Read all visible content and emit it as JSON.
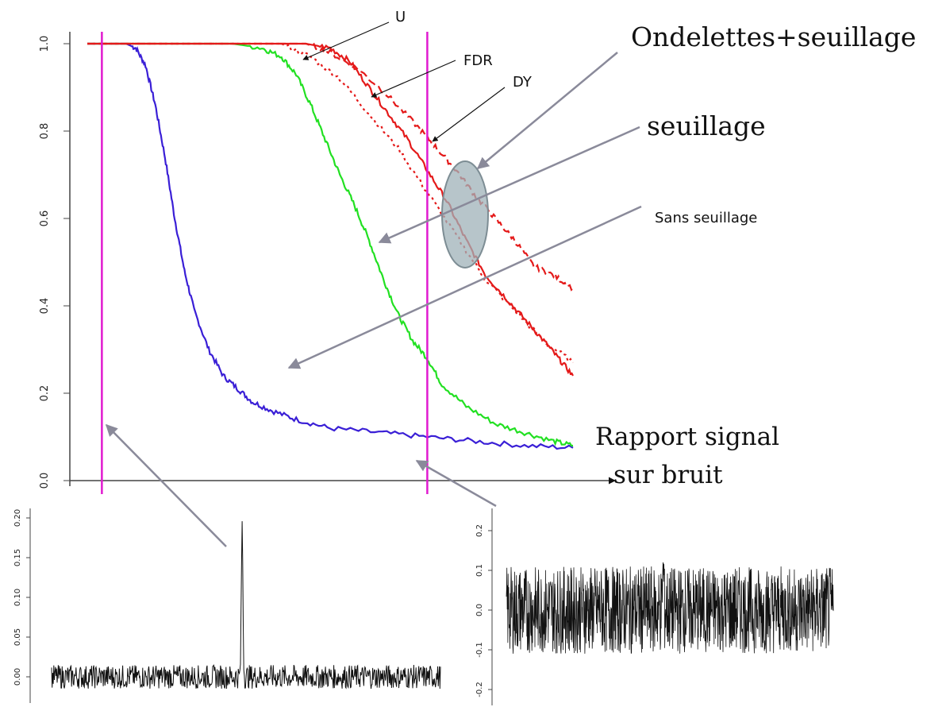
{
  "chart_data": [
    {
      "type": "line",
      "yticks": [
        "0.0",
        "0.2",
        "0.4",
        "0.6",
        "0.8",
        "1.0"
      ],
      "ylim": [
        0,
        1.0
      ],
      "xlim": [
        0,
        1
      ],
      "grid": false,
      "series": [
        {
          "name": "Sans seuillage",
          "color": "#3a1fd6",
          "style": "solid",
          "x": [
            0.0,
            0.08,
            0.1,
            0.12,
            0.14,
            0.16,
            0.18,
            0.2,
            0.22,
            0.25,
            0.28,
            0.31,
            0.34,
            0.38,
            0.43,
            0.5,
            0.6,
            0.7,
            0.8,
            0.9,
            1.0
          ],
          "y": [
            1.0,
            1.0,
            0.99,
            0.95,
            0.86,
            0.74,
            0.6,
            0.48,
            0.39,
            0.3,
            0.24,
            0.21,
            0.18,
            0.16,
            0.14,
            0.12,
            0.11,
            0.1,
            0.09,
            0.08,
            0.075
          ]
        },
        {
          "name": "seuillage",
          "color": "#22e022",
          "style": "solid",
          "x": [
            0.0,
            0.3,
            0.36,
            0.4,
            0.43,
            0.46,
            0.49,
            0.52,
            0.55,
            0.58,
            0.61,
            0.64,
            0.67,
            0.7,
            0.73,
            0.78,
            0.84,
            0.9,
            0.96,
            1.0
          ],
          "y": [
            1.0,
            1.0,
            0.99,
            0.97,
            0.93,
            0.86,
            0.78,
            0.7,
            0.63,
            0.55,
            0.46,
            0.38,
            0.32,
            0.28,
            0.22,
            0.17,
            0.13,
            0.11,
            0.09,
            0.08
          ]
        },
        {
          "name": "FDR",
          "color": "#e41a1a",
          "style": "solid",
          "x": [
            0.0,
            0.45,
            0.5,
            0.54,
            0.58,
            0.62,
            0.66,
            0.7,
            0.74,
            0.78,
            0.82,
            0.86,
            0.9,
            0.94,
            0.97,
            1.0
          ],
          "y": [
            1.0,
            1.0,
            0.99,
            0.96,
            0.9,
            0.84,
            0.78,
            0.71,
            0.64,
            0.55,
            0.47,
            0.42,
            0.37,
            0.32,
            0.28,
            0.24
          ]
        },
        {
          "name": "U",
          "color": "#e41a1a",
          "style": "dotted",
          "x": [
            0.0,
            0.4,
            0.46,
            0.52,
            0.58,
            0.64,
            0.7,
            0.76,
            0.82,
            0.88,
            0.94,
            1.0
          ],
          "y": [
            1.0,
            1.0,
            0.97,
            0.92,
            0.84,
            0.76,
            0.66,
            0.56,
            0.46,
            0.39,
            0.32,
            0.27
          ]
        },
        {
          "name": "DY",
          "color": "#e41a1a",
          "style": "dashed",
          "x": [
            0.0,
            0.45,
            0.5,
            0.56,
            0.62,
            0.68,
            0.72,
            0.76,
            0.8,
            0.84,
            0.88,
            0.92,
            0.96,
            1.0
          ],
          "y": [
            1.0,
            1.0,
            0.98,
            0.94,
            0.88,
            0.81,
            0.76,
            0.71,
            0.65,
            0.6,
            0.55,
            0.49,
            0.47,
            0.44
          ]
        }
      ],
      "vlines_x": [
        0.03,
        0.7
      ]
    },
    {
      "type": "line",
      "yticks": [
        "0.00",
        "0.05",
        "0.10",
        "0.15",
        "0.20"
      ],
      "ylim": [
        0.0,
        0.2
      ],
      "grid": false
    },
    {
      "type": "line",
      "yticks": [
        "-0.2",
        "-0.1",
        "0.0",
        "0.1",
        "0.2"
      ],
      "ylim": [
        -0.2,
        0.2
      ],
      "grid": false
    }
  ],
  "annotations": {
    "U": "U",
    "FDR": "FDR",
    "DY": "DY",
    "ondelettes": "Ondelettes+seuillage",
    "seuillage": "seuillage",
    "sans": "Sans seuillage",
    "rapport_line1": "Rapport signal",
    "rapport_line2": "sur bruit"
  },
  "colors": {
    "vline": "#e01ad0",
    "arrow": "#8a8a9a",
    "ellipse_fill": "#9fb1b8",
    "axis": "#444444"
  }
}
